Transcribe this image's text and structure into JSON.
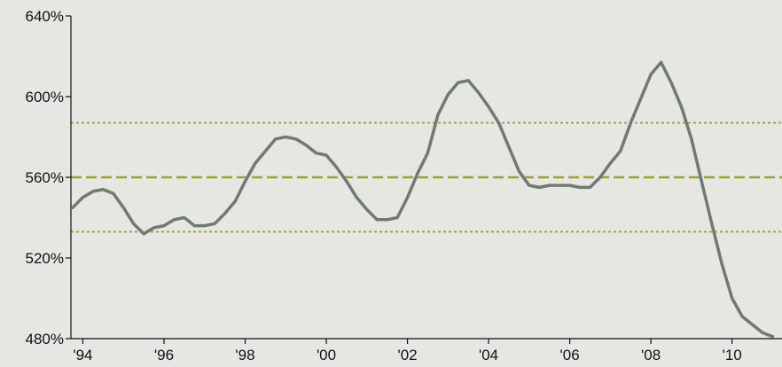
{
  "chart_data": {
    "type": "line",
    "title": "",
    "xlabel": "",
    "ylabel": "",
    "x_ticks": [
      "'94",
      "'96",
      "'98",
      "'00",
      "'02",
      "'04",
      "'06",
      "'08",
      "'10"
    ],
    "y_ticks": [
      "480%",
      "520%",
      "560%",
      "600%",
      "640%"
    ],
    "xlim": [
      1993.75,
      2011.1
    ],
    "ylim": [
      480,
      640
    ],
    "grid": false,
    "reference_lines": [
      {
        "value": 560,
        "style": "dashed",
        "color": "#9aa238"
      },
      {
        "value": 587,
        "style": "dotted",
        "color": "#9aa238"
      },
      {
        "value": 533,
        "style": "dotted",
        "color": "#9aa238"
      }
    ],
    "series_color": "#6f7a73",
    "x": [
      1993.75,
      1994.0,
      1994.25,
      1994.5,
      1994.75,
      1995.0,
      1995.25,
      1995.5,
      1995.75,
      1996.0,
      1996.25,
      1996.5,
      1996.75,
      1997.0,
      1997.25,
      1997.5,
      1997.75,
      1998.0,
      1998.25,
      1998.5,
      1998.75,
      1999.0,
      1999.25,
      1999.5,
      1999.75,
      2000.0,
      2000.25,
      2000.5,
      2000.75,
      2001.0,
      2001.25,
      2001.5,
      2001.75,
      2002.0,
      2002.25,
      2002.5,
      2002.75,
      2003.0,
      2003.25,
      2003.5,
      2003.75,
      2004.0,
      2004.25,
      2004.5,
      2004.75,
      2005.0,
      2005.25,
      2005.5,
      2005.75,
      2006.0,
      2006.25,
      2006.5,
      2006.75,
      2007.0,
      2007.25,
      2007.5,
      2007.75,
      2008.0,
      2008.25,
      2008.5,
      2008.75,
      2009.0,
      2009.25,
      2009.5,
      2009.75,
      2010.0,
      2010.25,
      2010.5,
      2010.75,
      2011.0
    ],
    "values": [
      545,
      550,
      553,
      554,
      552,
      545,
      537,
      532,
      535,
      536,
      539,
      540,
      536,
      536,
      537,
      542,
      548,
      558,
      567,
      573,
      579,
      580,
      579,
      576,
      572,
      571,
      565,
      558,
      550,
      544,
      539,
      539,
      540,
      550,
      562,
      572,
      591,
      601,
      607,
      608,
      602,
      595,
      587,
      575,
      563,
      556,
      555,
      556,
      556,
      556,
      555,
      555,
      560,
      567,
      573,
      587,
      599,
      611,
      617,
      607,
      595,
      579,
      558,
      537,
      517,
      500,
      491,
      487,
      483,
      481
    ]
  }
}
